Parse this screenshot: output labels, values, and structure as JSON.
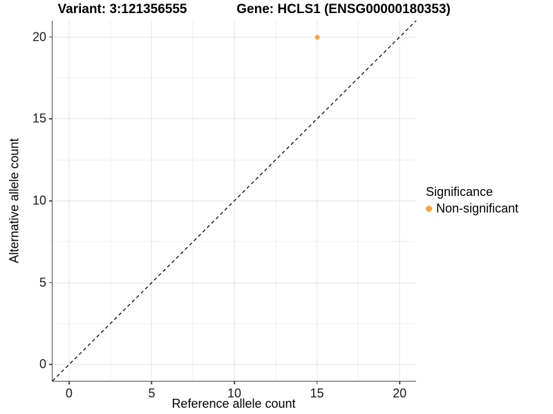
{
  "titles": {
    "variant": "Variant: 3:121356555",
    "gene": "Gene: HCLS1 (ENSG00000180353)"
  },
  "chart_data": {
    "type": "scatter",
    "title_left": "Variant: 3:121356555",
    "title_right": "Gene: HCLS1 (ENSG00000180353)",
    "xlabel": "Reference allele count",
    "ylabel": "Alternative allele count",
    "xlim": [
      -1,
      21
    ],
    "ylim": [
      -1,
      21
    ],
    "x_ticks": [
      0,
      5,
      10,
      15,
      20
    ],
    "y_ticks": [
      0,
      5,
      10,
      15,
      20
    ],
    "x_minor_ticks": [
      2.5,
      7.5,
      12.5,
      17.5
    ],
    "y_minor_ticks": [
      2.5,
      7.5,
      12.5,
      17.5
    ],
    "grid": "major and minor gridlines on white background",
    "points": [
      {
        "x": 15,
        "y": 20,
        "series": "Non-significant"
      }
    ],
    "reference_line": {
      "shape": "identity y=x",
      "style": "dashed",
      "from": [
        -1,
        -1
      ],
      "to": [
        21,
        21
      ]
    },
    "legend": {
      "title": "Significance",
      "position": "right",
      "entries": [
        {
          "label": "Non-significant",
          "color": "#F9A242"
        }
      ]
    },
    "colors": {
      "point": "#F9A242",
      "grid_major": "#E3E3E3",
      "grid_minor": "#EFEFEF",
      "axis_line": "#474747",
      "tick_text": "#1A1A1A",
      "dashed_line": "#000000",
      "background": "#FFFFFF"
    }
  }
}
